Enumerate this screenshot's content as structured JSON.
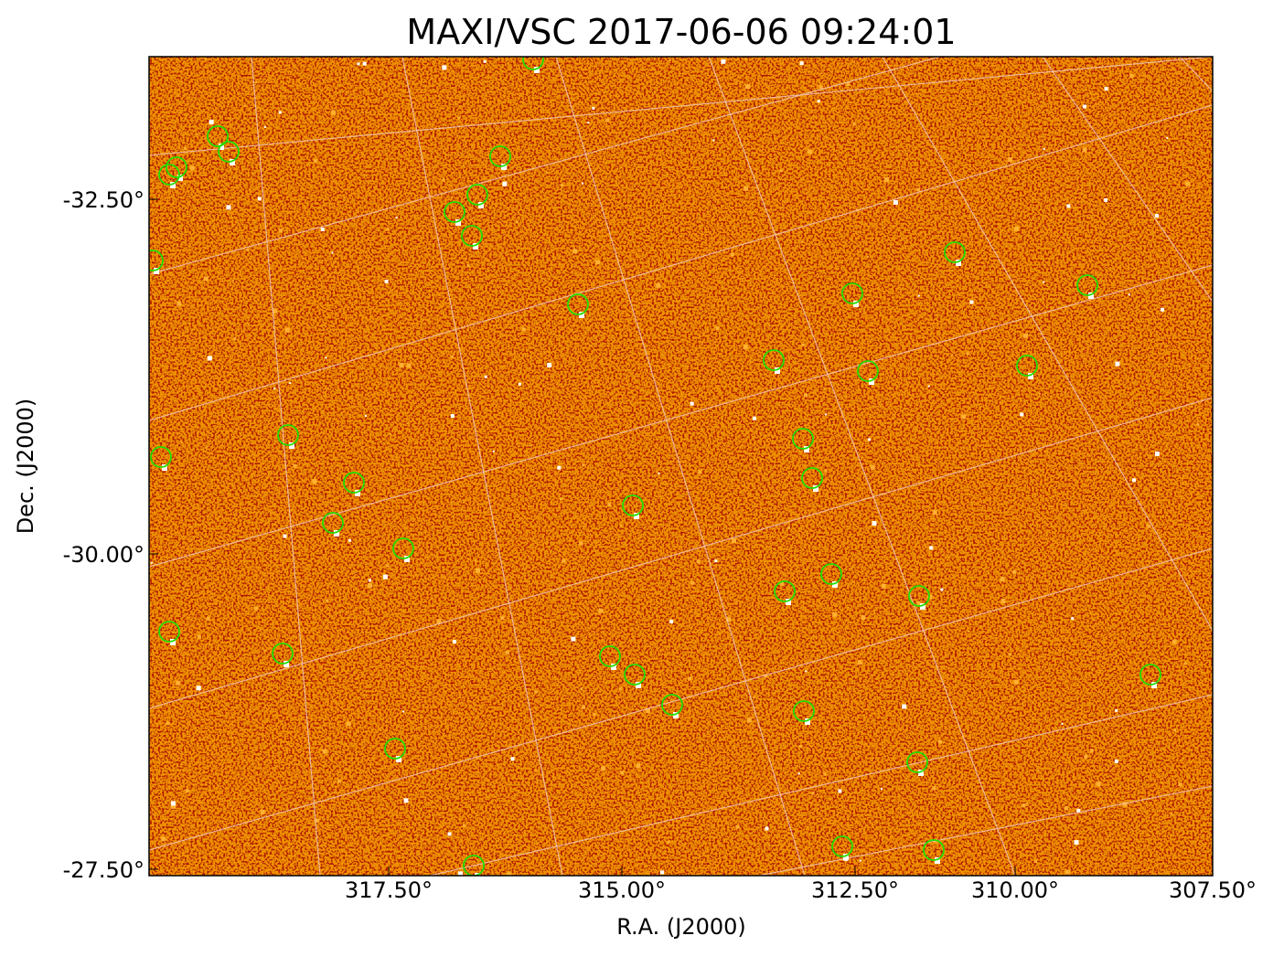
{
  "title": "MAXI/VSC 2017-06-06 09:24:01",
  "x_axis": {
    "label": "R.A. (J2000)",
    "ticks": [
      "317.50°",
      "315.00°",
      "312.50°",
      "310.00°",
      "307.50°"
    ]
  },
  "y_axis": {
    "label": "Dec. (J2000)",
    "ticks": [
      "-32.50°",
      "-30.00°",
      "-27.50°"
    ]
  }
}
